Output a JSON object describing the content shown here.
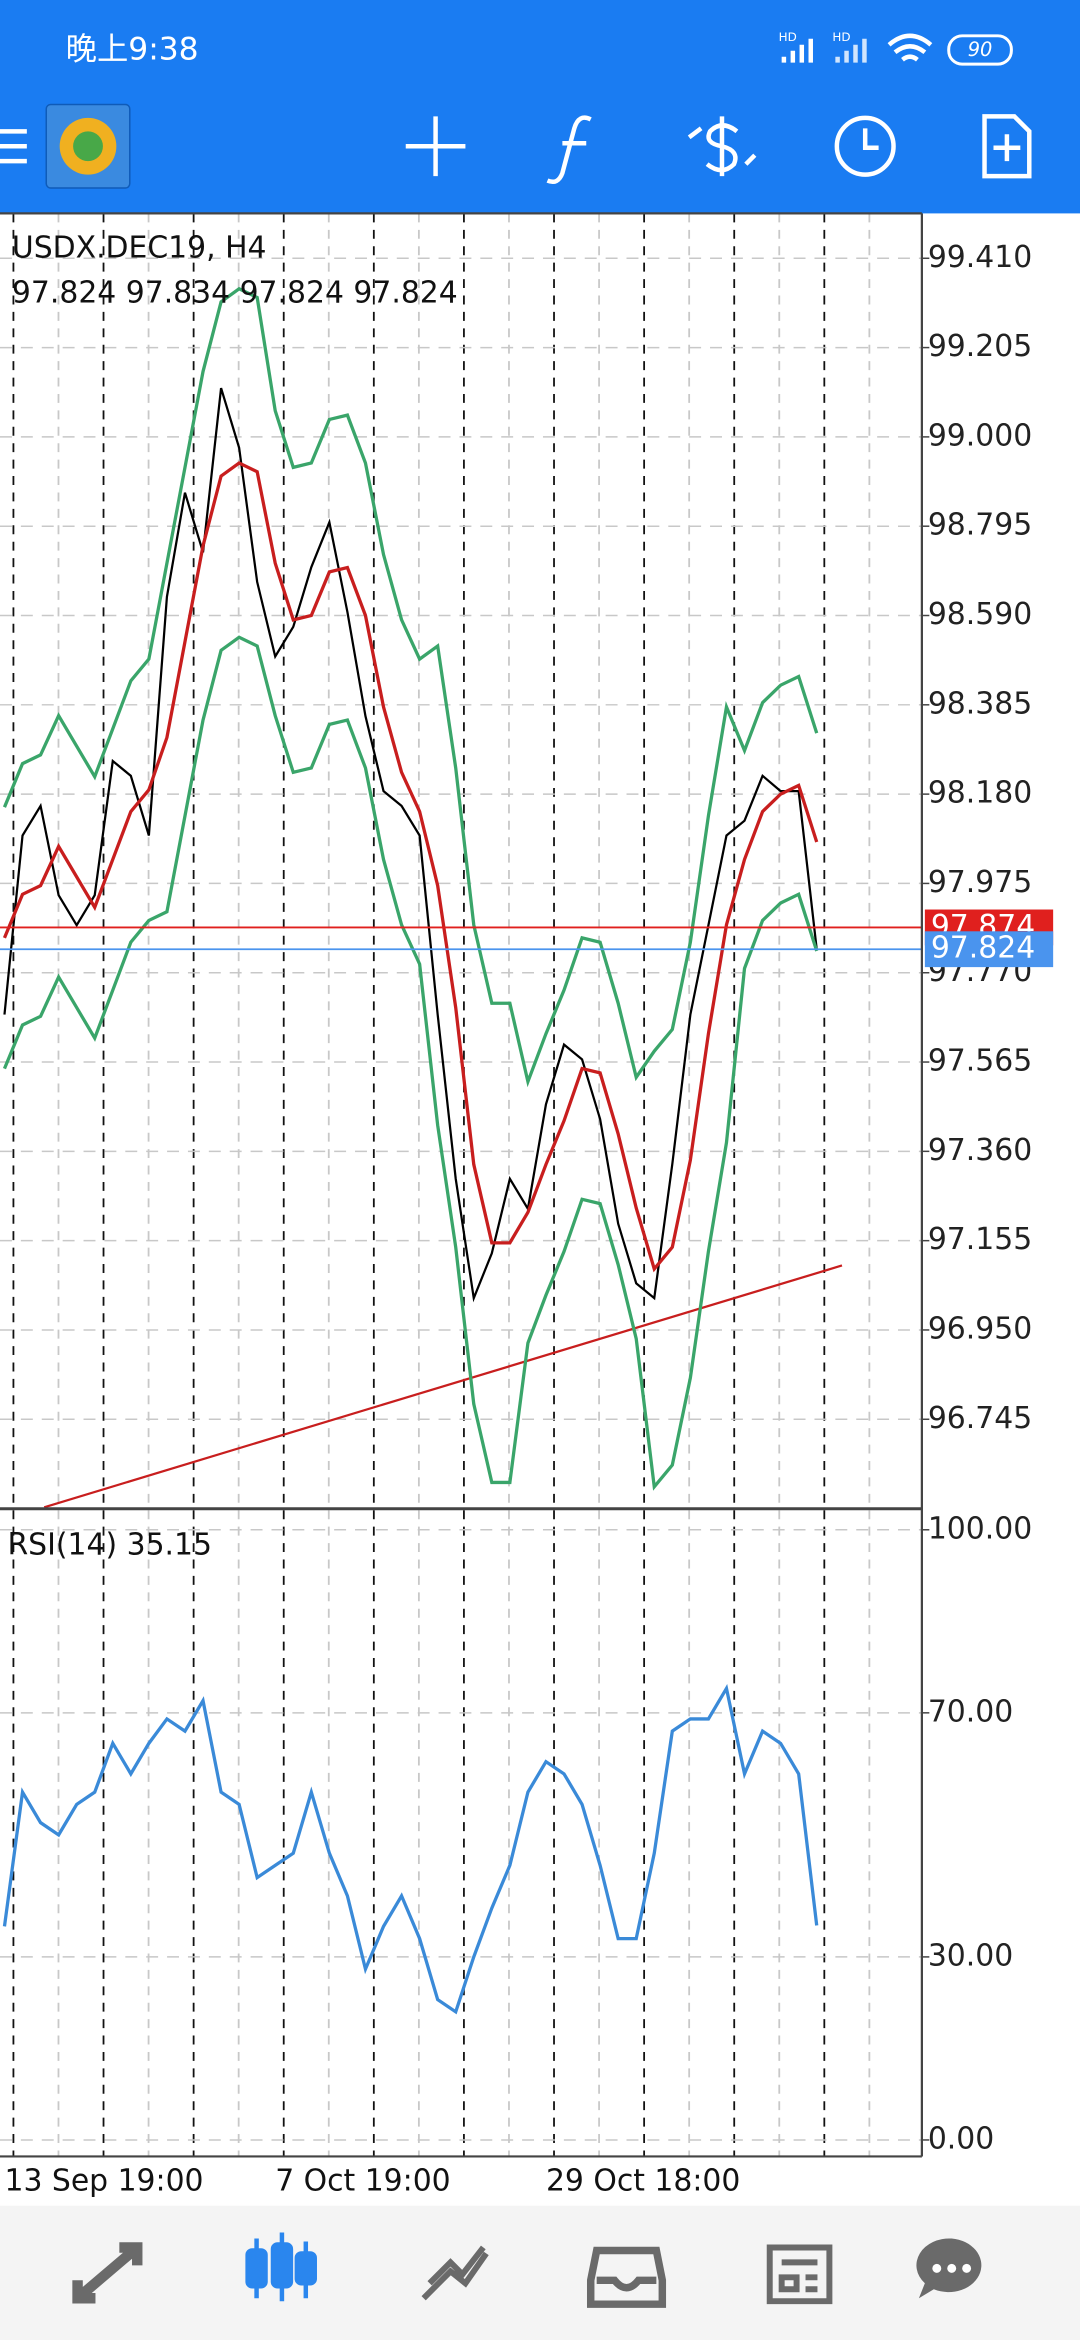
{
  "status_bar": {
    "time": "晚上9:38",
    "signal_labels": [
      "HD",
      "HD"
    ],
    "battery": "90"
  },
  "chart_data": [
    {
      "type": "line",
      "title": "USDX.DEC19, H4",
      "subtitle": "97.824 97.834 97.824 97.824",
      "series": [
        {
          "color": "#000000",
          "values": [
            97.674,
            98.085,
            98.153,
            97.948,
            97.879,
            97.948,
            98.256,
            98.222,
            98.085,
            98.633,
            98.872,
            98.735,
            99.112,
            98.975,
            98.667,
            98.496,
            98.564,
            98.701,
            98.804,
            98.598,
            98.359,
            98.187,
            98.153,
            98.085,
            97.674,
            97.297,
            97.023,
            97.126,
            97.297,
            97.228,
            97.468,
            97.605,
            97.571,
            97.434,
            97.194,
            97.057,
            97.023,
            97.331,
            97.674,
            97.879,
            98.085,
            98.119,
            98.222,
            98.187,
            98.187,
            97.824
          ]
        },
        {
          "color": "#c81e1e",
          "values": [
            97.85,
            97.95,
            97.97,
            98.06,
            97.99,
            97.92,
            98.03,
            98.14,
            98.19,
            98.31,
            98.53,
            98.75,
            98.91,
            98.94,
            98.92,
            98.71,
            98.58,
            98.59,
            98.69,
            98.7,
            98.59,
            98.38,
            98.23,
            98.14,
            97.97,
            97.69,
            97.33,
            97.15,
            97.15,
            97.22,
            97.33,
            97.43,
            97.55,
            97.54,
            97.4,
            97.23,
            97.09,
            97.14,
            97.34,
            97.63,
            97.88,
            98.03,
            98.14,
            98.18,
            98.2,
            98.07
          ]
        },
        {
          "color": "#3aa56a",
          "values": [
            98.15,
            98.25,
            98.27,
            98.36,
            98.29,
            98.22,
            98.33,
            98.44,
            98.49,
            98.71,
            98.93,
            99.15,
            99.31,
            99.34,
            99.32,
            99.06,
            98.93,
            98.94,
            99.04,
            99.05,
            98.94,
            98.73,
            98.58,
            98.49,
            98.52,
            98.24,
            97.88,
            97.7,
            97.7,
            97.52,
            97.63,
            97.73,
            97.85,
            97.84,
            97.7,
            97.53,
            97.59,
            97.64,
            97.84,
            98.13,
            98.38,
            98.28,
            98.39,
            98.43,
            98.45,
            98.32
          ]
        },
        {
          "color": "#3aa56a",
          "values": [
            97.55,
            97.65,
            97.67,
            97.76,
            97.69,
            97.62,
            97.73,
            97.84,
            97.89,
            97.91,
            98.13,
            98.35,
            98.51,
            98.54,
            98.52,
            98.36,
            98.23,
            98.24,
            98.34,
            98.35,
            98.24,
            98.03,
            97.88,
            97.79,
            97.42,
            97.14,
            96.78,
            96.6,
            96.6,
            96.92,
            97.03,
            97.13,
            97.25,
            97.24,
            97.1,
            96.93,
            96.59,
            96.64,
            96.84,
            97.13,
            97.38,
            97.78,
            97.89,
            97.93,
            97.95,
            97.82
          ]
        }
      ],
      "ylim": [
        96.543,
        99.513
      ],
      "yticks": [
        {
          "value": 99.41,
          "label": "99.410"
        },
        {
          "value": 99.205,
          "label": "99.205"
        },
        {
          "value": 99.0,
          "label": "99.000"
        },
        {
          "value": 98.795,
          "label": "98.795"
        },
        {
          "value": 98.59,
          "label": "98.590"
        },
        {
          "value": 98.385,
          "label": "98.385"
        },
        {
          "value": 98.18,
          "label": "98.180"
        },
        {
          "value": 97.975,
          "label": "97.975"
        },
        {
          "value": 97.77,
          "label": "97.770"
        },
        {
          "value": 97.565,
          "label": "97.565"
        },
        {
          "value": 97.36,
          "label": "97.360"
        },
        {
          "value": 97.155,
          "label": "97.155"
        },
        {
          "value": 96.95,
          "label": "96.950"
        },
        {
          "value": 96.745,
          "label": "96.745"
        }
      ],
      "price_lines": [
        {
          "value": 97.874,
          "label": "97.874",
          "color": "#e0201e"
        },
        {
          "value": 97.824,
          "label": "97.824",
          "color": "#4a94ee"
        }
      ],
      "trendline": {
        "x": [
          2.2,
          46.4
        ],
        "values": [
          96.543,
          97.098
        ],
        "color": "#c81e1e"
      },
      "grid": true
    },
    {
      "type": "line",
      "title": "RSI(14) 35.15",
      "categories": [
        "13 Sep 19:00",
        null,
        null,
        null,
        null,
        null,
        null,
        null,
        null,
        null,
        null,
        null,
        null,
        null,
        null,
        "7 Oct 19:00",
        null,
        null,
        null,
        null,
        null,
        null,
        null,
        null,
        null,
        null,
        null,
        null,
        null,
        null,
        "29 Oct 18:00",
        null,
        null,
        null,
        null,
        null,
        null,
        null,
        null,
        null,
        null,
        null,
        null,
        null,
        null,
        null
      ],
      "series": [
        {
          "color": "#3a8ad8",
          "values": [
            35,
            57,
            52,
            50,
            55,
            57,
            65,
            60,
            65,
            69,
            67,
            72,
            57,
            55,
            43,
            45,
            47,
            57,
            47,
            40,
            28,
            35,
            40,
            33,
            23,
            21,
            30,
            38,
            45,
            57,
            62,
            60,
            55,
            45,
            33,
            33,
            47,
            67,
            69,
            69,
            74,
            60,
            67,
            65,
            60,
            35.15
          ]
        }
      ],
      "ylim": [
        -2.7,
        103.2
      ],
      "yticks": [
        {
          "value": 100,
          "label": "100.00"
        },
        {
          "value": 70,
          "label": "70.00"
        },
        {
          "value": 30,
          "label": "30.00"
        },
        {
          "value": 0,
          "label": "0.00"
        }
      ],
      "grid": true
    }
  ]
}
